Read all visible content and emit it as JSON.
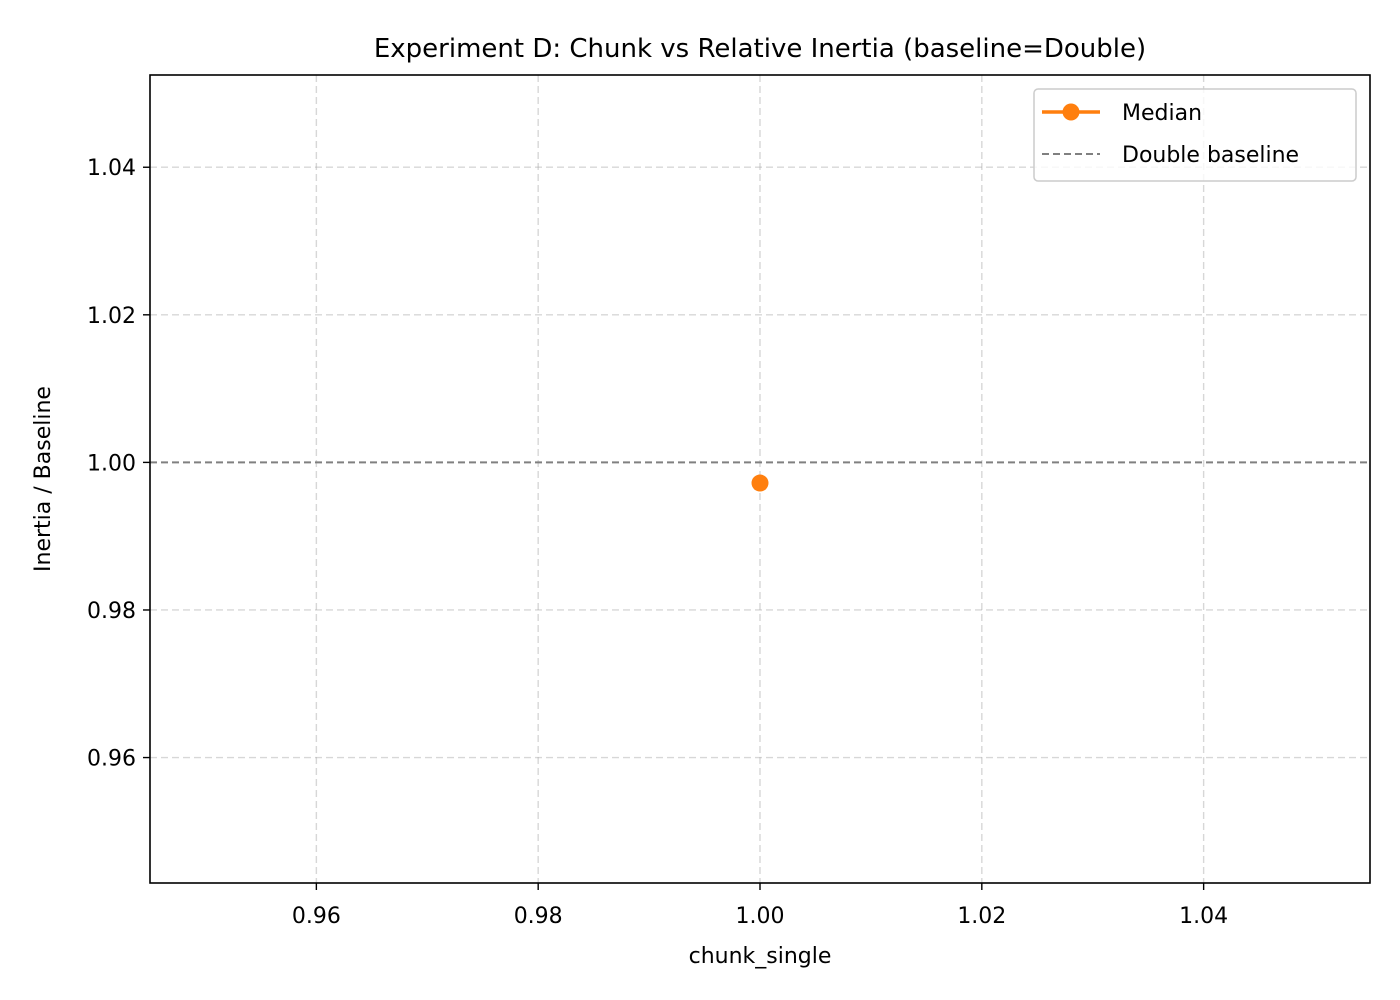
{
  "chart_data": {
    "type": "line",
    "title": "Experiment D: Chunk vs Relative Inertia (baseline=Double)",
    "xlabel": "chunk_single",
    "ylabel": "Inertia / Baseline",
    "xlim": [
      0.945,
      1.055
    ],
    "ylim": [
      0.943,
      1.0525
    ],
    "xticks": [
      0.96,
      0.98,
      1.0,
      1.02,
      1.04
    ],
    "xtick_labels": [
      "0.96",
      "0.98",
      "1.00",
      "1.02",
      "1.04"
    ],
    "yticks": [
      0.96,
      0.98,
      1.0,
      1.02,
      1.04
    ],
    "ytick_labels": [
      "0.96",
      "0.98",
      "1.00",
      "1.02",
      "1.04"
    ],
    "grid": true,
    "legend_position": "top-right",
    "series": [
      {
        "name": "Median",
        "x": [
          1.0
        ],
        "y": [
          0.9972
        ],
        "color": "#ff7f0e",
        "style": "solid-marker"
      }
    ],
    "reference_lines": [
      {
        "name": "Double baseline",
        "y": 1.0,
        "color": "#808080",
        "style": "dashed"
      }
    ],
    "legend": [
      {
        "label": "Median",
        "color": "#ff7f0e",
        "style": "line-marker"
      },
      {
        "label": "Double baseline",
        "color": "#808080",
        "style": "dashed"
      }
    ]
  }
}
